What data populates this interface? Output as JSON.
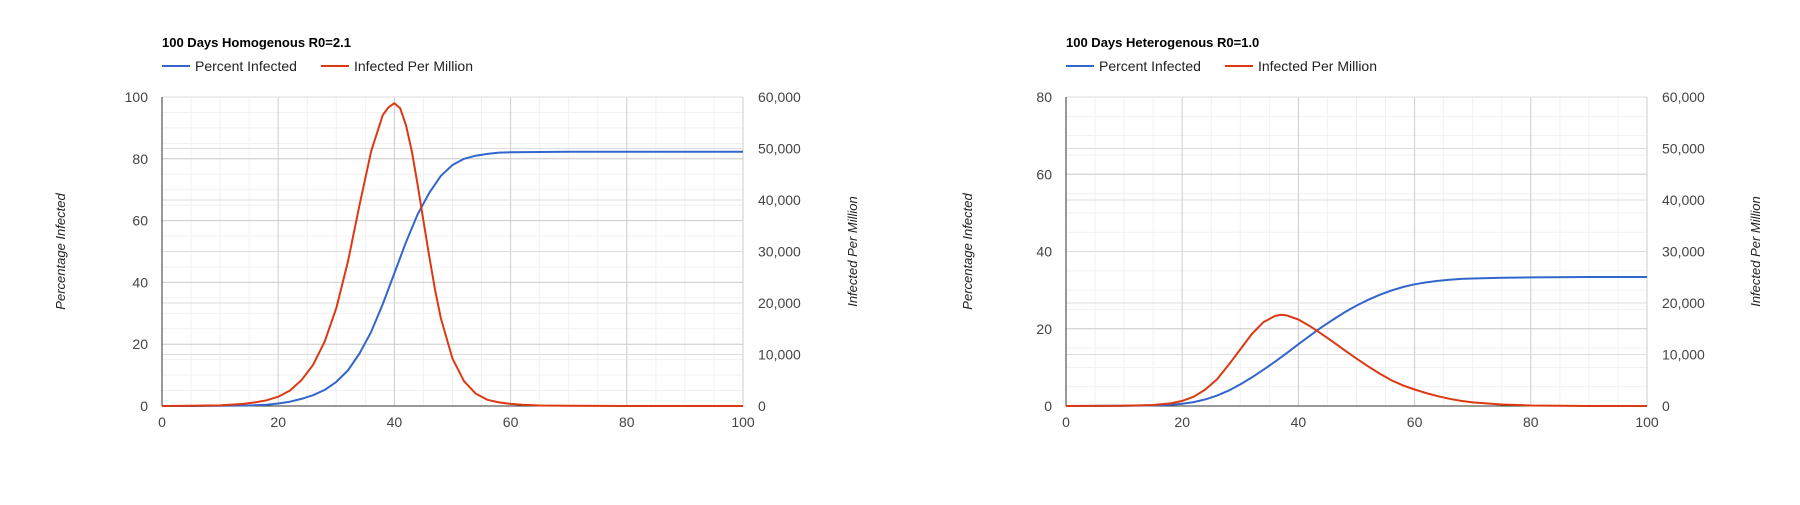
{
  "chart_data": [
    {
      "type": "line",
      "title": "100 Days Homogenous R0=2.1",
      "xlabel": "",
      "ylabel": "Percentage Infected",
      "y2label": "Infected Per Million",
      "xlim": [
        0,
        100
      ],
      "ylim": [
        0,
        100
      ],
      "y2lim": [
        0,
        60000
      ],
      "x_ticks": [
        0,
        20,
        40,
        60,
        80,
        100
      ],
      "y_ticks": [
        0,
        20,
        40,
        60,
        80,
        100
      ],
      "y2_ticks": [
        "0",
        "10,000",
        "20,000",
        "30,000",
        "40,000",
        "50,000",
        "60,000"
      ],
      "grid": true,
      "legend": "top-left",
      "series": [
        {
          "name": "Percent Infected",
          "axis": "left",
          "color": "#3366cc",
          "x": [
            0,
            5,
            10,
            15,
            18,
            20,
            22,
            24,
            26,
            28,
            30,
            32,
            34,
            36,
            38,
            40,
            42,
            44,
            46,
            48,
            50,
            52,
            54,
            56,
            58,
            60,
            65,
            70,
            80,
            90,
            100
          ],
          "y": [
            0,
            0,
            0.05,
            0.15,
            0.4,
            0.8,
            1.4,
            2.3,
            3.5,
            5.2,
            7.8,
            11.5,
            17,
            24,
            33,
            43,
            53,
            62,
            69,
            74.5,
            78,
            80,
            81,
            81.6,
            82,
            82.1,
            82.2,
            82.3,
            82.3,
            82.3,
            82.3
          ]
        },
        {
          "name": "Infected Per Million",
          "axis": "right",
          "color": "#dc3912",
          "x": [
            0,
            5,
            10,
            14,
            16,
            18,
            20,
            22,
            24,
            26,
            28,
            30,
            32,
            34,
            36,
            38,
            39,
            40,
            41,
            42,
            43,
            44,
            45,
            46,
            47,
            48,
            50,
            52,
            54,
            56,
            58,
            60,
            62,
            65,
            70,
            80,
            90,
            100
          ],
          "y": [
            0,
            30,
            120,
            400,
            700,
            1100,
            1800,
            3000,
            5000,
            8000,
            12500,
            19000,
            28000,
            39000,
            49500,
            56500,
            58000,
            58800,
            57800,
            54500,
            49500,
            43000,
            36000,
            29000,
            22500,
            17000,
            9200,
            4800,
            2400,
            1200,
            700,
            400,
            250,
            100,
            30,
            0,
            0,
            0
          ]
        }
      ]
    },
    {
      "type": "line",
      "title": "100 Days Heterogenous R0=1.0",
      "xlabel": "",
      "ylabel": "Percentage Infected",
      "y2label": "Infected Per Million",
      "xlim": [
        0,
        100
      ],
      "ylim": [
        0,
        80
      ],
      "y2lim": [
        0,
        60000
      ],
      "x_ticks": [
        0,
        20,
        40,
        60,
        80,
        100
      ],
      "y_ticks": [
        0,
        20,
        40,
        60,
        80
      ],
      "y2_ticks": [
        "0",
        "10,000",
        "20,000",
        "30,000",
        "40,000",
        "50,000",
        "60,000"
      ],
      "grid": true,
      "legend": "top-left",
      "series": [
        {
          "name": "Percent Infected",
          "axis": "left",
          "color": "#3366cc",
          "x": [
            0,
            10,
            15,
            18,
            20,
            22,
            24,
            26,
            28,
            30,
            32,
            34,
            36,
            38,
            40,
            42,
            44,
            46,
            48,
            50,
            52,
            54,
            56,
            58,
            60,
            62,
            64,
            66,
            68,
            70,
            75,
            80,
            90,
            100
          ],
          "y": [
            0,
            0.05,
            0.15,
            0.3,
            0.6,
            1.0,
            1.7,
            2.7,
            4.0,
            5.6,
            7.4,
            9.4,
            11.5,
            13.7,
            16.0,
            18.2,
            20.4,
            22.4,
            24.3,
            26.0,
            27.5,
            28.8,
            29.9,
            30.8,
            31.5,
            32.0,
            32.4,
            32.7,
            32.9,
            33.0,
            33.2,
            33.3,
            33.4,
            33.4
          ]
        },
        {
          "name": "Infected Per Million",
          "axis": "right",
          "color": "#dc3912",
          "x": [
            0,
            10,
            15,
            18,
            20,
            22,
            24,
            26,
            28,
            30,
            32,
            34,
            36,
            37,
            38,
            40,
            42,
            44,
            46,
            48,
            50,
            52,
            54,
            56,
            58,
            60,
            62,
            64,
            66,
            68,
            70,
            75,
            80,
            90,
            100
          ],
          "y": [
            0,
            50,
            200,
            500,
            1000,
            1800,
            3200,
            5200,
            8000,
            11000,
            14000,
            16300,
            17500,
            17700,
            17600,
            16800,
            15500,
            14000,
            12400,
            10800,
            9200,
            7700,
            6300,
            5000,
            4000,
            3200,
            2500,
            1900,
            1400,
            1000,
            700,
            300,
            100,
            0,
            0
          ]
        }
      ]
    }
  ]
}
